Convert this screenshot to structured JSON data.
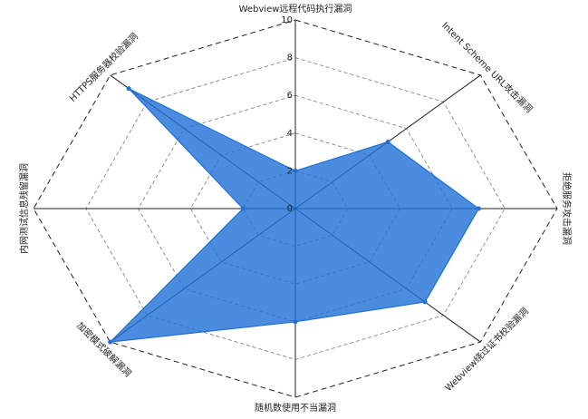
{
  "chart_data": {
    "type": "radar",
    "categories": [
      "Webview远程代码执行漏洞",
      "Intent Scheme URL攻击漏洞",
      "拒绝服务攻击漏洞",
      "Webview绕过证书校验漏洞",
      "随机数使用不当漏洞",
      "加密模式破解漏洞",
      "内网测试信息残留漏洞",
      "HTTPS服务器校验漏洞"
    ],
    "values": [
      2,
      5,
      7,
      7,
      6,
      10,
      2,
      9
    ],
    "color": "#1f6fd6",
    "rlim": [
      0,
      10
    ],
    "rticks": [
      0,
      2,
      4,
      6,
      8,
      10
    ],
    "grid": true
  }
}
